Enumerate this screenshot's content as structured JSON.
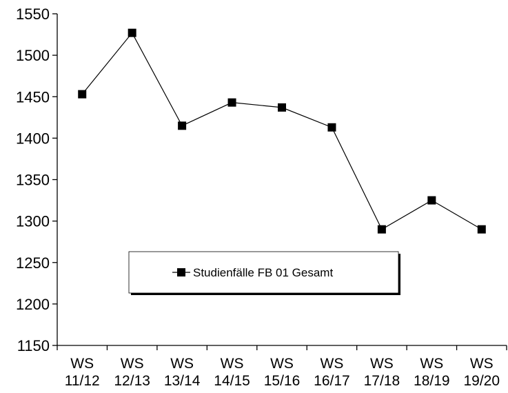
{
  "chart_data": {
    "type": "line",
    "categories": [
      [
        "WS",
        "11/12"
      ],
      [
        "WS",
        "12/13"
      ],
      [
        "WS",
        "13/14"
      ],
      [
        "WS",
        "14/15"
      ],
      [
        "WS",
        "15/16"
      ],
      [
        "WS",
        "16/17"
      ],
      [
        "WS",
        "17/18"
      ],
      [
        "WS",
        "18/19"
      ],
      [
        "WS",
        "19/20"
      ]
    ],
    "series": [
      {
        "name": "Studienfälle FB 01 Gesamt",
        "values": [
          1453,
          1527,
          1415,
          1443,
          1437,
          1413,
          1290,
          1325,
          1290
        ],
        "color": "#000000",
        "marker": "square"
      }
    ],
    "ylim": [
      1150,
      1550
    ],
    "yticks": [
      1150,
      1200,
      1250,
      1300,
      1350,
      1400,
      1450,
      1500,
      1550
    ],
    "title": "",
    "xlabel": "",
    "ylabel": "",
    "grid": false,
    "legend": "lower-center"
  }
}
